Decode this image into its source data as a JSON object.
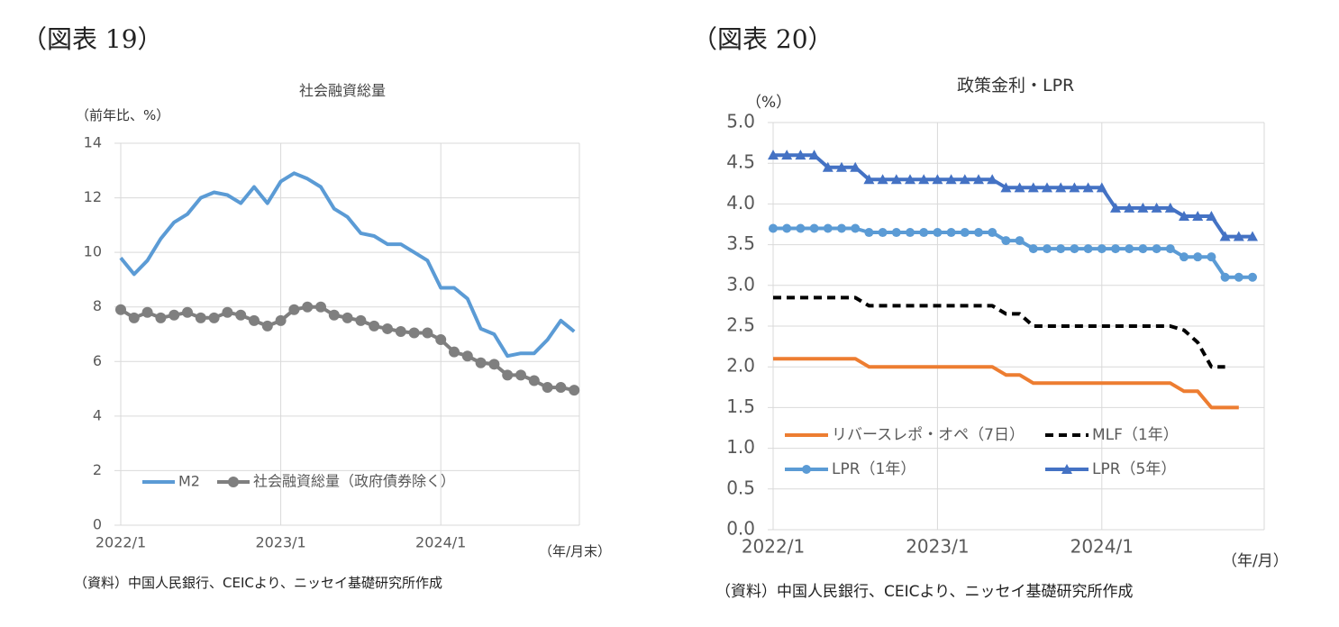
{
  "fig19_label": "（図表 19）",
  "fig20_label": "（図表 20）",
  "chart_data": [
    {
      "type": "line",
      "title": "社会融資総量",
      "ylabel": "（前年比、%）",
      "xlabel": "（年/月末）",
      "ylim": [
        0,
        14
      ],
      "yticks": [
        "0",
        "2",
        "4",
        "6",
        "8",
        "10",
        "12",
        "14"
      ],
      "xtick_labels": [
        "2022/1",
        "2023/1",
        "2024/1"
      ],
      "x_start": "2022-01",
      "grid": true,
      "legend_position": "bottom-left",
      "series": [
        {
          "name": "M2",
          "color": "#5b9bd5",
          "marker": "none",
          "values": [
            9.8,
            9.2,
            9.7,
            10.5,
            11.1,
            11.4,
            12.0,
            12.2,
            12.1,
            11.8,
            12.4,
            11.8,
            12.6,
            12.9,
            12.7,
            12.4,
            11.6,
            11.3,
            10.7,
            10.6,
            10.3,
            10.3,
            10.0,
            9.7,
            8.7,
            8.7,
            8.3,
            7.2,
            7.0,
            6.2,
            6.3,
            6.3,
            6.8,
            7.5,
            7.1
          ]
        },
        {
          "name": "社会融資総量（政府債券除く）",
          "color": "#7f7f7f",
          "marker": "circle",
          "values": [
            7.9,
            7.6,
            7.8,
            7.6,
            7.7,
            7.8,
            7.6,
            7.6,
            7.8,
            7.7,
            7.5,
            7.3,
            7.5,
            7.9,
            8.0,
            8.0,
            7.7,
            7.6,
            7.5,
            7.3,
            7.2,
            7.1,
            7.05,
            7.05,
            6.8,
            6.35,
            6.2,
            5.95,
            5.9,
            5.5,
            5.5,
            5.3,
            5.05,
            5.05,
            4.95
          ]
        }
      ],
      "source": "（資料）中国人民銀行、CEICより、ニッセイ基礎研究所作成"
    },
    {
      "type": "line",
      "title": "政策金利・LPR",
      "ylabel": "（%）",
      "xlabel": "（年/月）",
      "ylim": [
        0,
        5
      ],
      "yticks": [
        "0.0",
        "0.5",
        "1.0",
        "1.5",
        "2.0",
        "2.5",
        "3.0",
        "3.5",
        "4.0",
        "4.5",
        "5.0"
      ],
      "xtick_labels": [
        "2022/1",
        "2023/1",
        "2024/1"
      ],
      "x_start": "2022-01",
      "grid": true,
      "legend_position": "bottom",
      "series": [
        {
          "name": "リバースレポ・オペ（7日）",
          "color": "#ed7d31",
          "marker": "none",
          "dash": "solid",
          "values": [
            2.1,
            2.1,
            2.1,
            2.1,
            2.1,
            2.1,
            2.1,
            2.0,
            2.0,
            2.0,
            2.0,
            2.0,
            2.0,
            2.0,
            2.0,
            2.0,
            2.0,
            1.9,
            1.9,
            1.8,
            1.8,
            1.8,
            1.8,
            1.8,
            1.8,
            1.8,
            1.8,
            1.8,
            1.8,
            1.8,
            1.7,
            1.7,
            1.5,
            1.5,
            1.5
          ]
        },
        {
          "name": "MLF（1年）",
          "color": "#000000",
          "marker": "none",
          "dash": "dashed",
          "values": [
            2.85,
            2.85,
            2.85,
            2.85,
            2.85,
            2.85,
            2.85,
            2.75,
            2.75,
            2.75,
            2.75,
            2.75,
            2.75,
            2.75,
            2.75,
            2.75,
            2.75,
            2.65,
            2.65,
            2.5,
            2.5,
            2.5,
            2.5,
            2.5,
            2.5,
            2.5,
            2.5,
            2.5,
            2.5,
            2.5,
            2.45,
            2.3,
            2.0,
            2.0
          ]
        },
        {
          "name": "LPR（1年）",
          "color": "#5b9bd5",
          "marker": "circle",
          "dash": "solid",
          "values": [
            3.7,
            3.7,
            3.7,
            3.7,
            3.7,
            3.7,
            3.7,
            3.65,
            3.65,
            3.65,
            3.65,
            3.65,
            3.65,
            3.65,
            3.65,
            3.65,
            3.65,
            3.55,
            3.55,
            3.45,
            3.45,
            3.45,
            3.45,
            3.45,
            3.45,
            3.45,
            3.45,
            3.45,
            3.45,
            3.45,
            3.35,
            3.35,
            3.35,
            3.1,
            3.1,
            3.1
          ]
        },
        {
          "name": "LPR（5年）",
          "color": "#4472c4",
          "marker": "triangle",
          "dash": "solid",
          "values": [
            4.6,
            4.6,
            4.6,
            4.6,
            4.45,
            4.45,
            4.45,
            4.3,
            4.3,
            4.3,
            4.3,
            4.3,
            4.3,
            4.3,
            4.3,
            4.3,
            4.3,
            4.2,
            4.2,
            4.2,
            4.2,
            4.2,
            4.2,
            4.2,
            4.2,
            3.95,
            3.95,
            3.95,
            3.95,
            3.95,
            3.85,
            3.85,
            3.85,
            3.6,
            3.6,
            3.6
          ]
        }
      ],
      "source": "（資料）中国人民銀行、CEICより、ニッセイ基礎研究所作成"
    }
  ]
}
